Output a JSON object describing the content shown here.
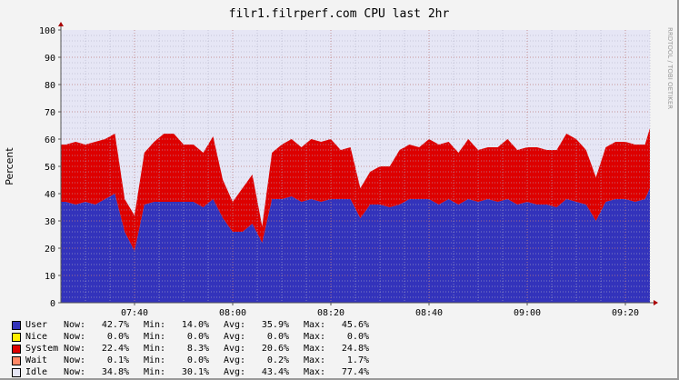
{
  "chart_data": {
    "type": "area",
    "stacked": true,
    "title": "filr1.filrperf.com CPU last 2hr",
    "ylabel": "Percent",
    "xlabel": "",
    "ylim": [
      0,
      100
    ],
    "yticks": [
      "0",
      "10",
      "20",
      "30",
      "40",
      "50",
      "60",
      "70",
      "80",
      "90",
      "100"
    ],
    "xticks": [
      "07:40",
      "08:00",
      "08:20",
      "08:40",
      "09:00",
      "09:20"
    ],
    "xlim": [
      "07:25",
      "09:25"
    ],
    "grid": true,
    "watermark": "RRDTOOL / TOBI OETIKER",
    "x": [
      "07:26",
      "07:28",
      "07:30",
      "07:32",
      "07:34",
      "07:36",
      "07:38",
      "07:40",
      "07:42",
      "07:44",
      "07:46",
      "07:48",
      "07:50",
      "07:52",
      "07:54",
      "07:56",
      "07:58",
      "08:00",
      "08:02",
      "08:04",
      "08:06",
      "08:08",
      "08:10",
      "08:12",
      "08:14",
      "08:16",
      "08:18",
      "08:20",
      "08:22",
      "08:24",
      "08:26",
      "08:28",
      "08:30",
      "08:32",
      "08:34",
      "08:36",
      "08:38",
      "08:40",
      "08:42",
      "08:44",
      "08:46",
      "08:48",
      "08:50",
      "08:52",
      "08:54",
      "08:56",
      "08:58",
      "09:00",
      "09:02",
      "09:04",
      "09:06",
      "09:08",
      "09:10",
      "09:12",
      "09:14",
      "09:16",
      "09:18",
      "09:20",
      "09:22",
      "09:24",
      "09:25"
    ],
    "series": [
      {
        "name": "User",
        "color": "#3333bb",
        "values": [
          37,
          36,
          37,
          36,
          38,
          40,
          26,
          19,
          36,
          37,
          37,
          37,
          37,
          37,
          35,
          38,
          31,
          26,
          26,
          29,
          22,
          38,
          38,
          39,
          37,
          38,
          37,
          38,
          38,
          38,
          31,
          36,
          36,
          35,
          36,
          38,
          38,
          38,
          36,
          38,
          36,
          38,
          37,
          38,
          37,
          38,
          36,
          37,
          36,
          36,
          35,
          38,
          37,
          36,
          30,
          37,
          38,
          38,
          37,
          38,
          42
        ]
      },
      {
        "name": "System",
        "color": "#dd0000",
        "values": [
          21,
          23,
          21,
          23,
          22,
          22,
          12,
          13,
          19,
          22,
          25,
          25,
          21,
          21,
          20,
          23,
          14,
          11,
          16,
          18,
          6,
          17,
          20,
          21,
          20,
          22,
          22,
          22,
          18,
          19,
          11,
          12,
          14,
          15,
          20,
          20,
          19,
          22,
          22,
          21,
          19,
          22,
          19,
          19,
          20,
          22,
          20,
          20,
          21,
          20,
          21,
          24,
          23,
          20,
          16,
          20,
          21,
          21,
          21,
          20,
          22
        ]
      }
    ],
    "legend": [
      {
        "name": "User",
        "color": "#3333bb",
        "now": "42.7%",
        "min": "14.0%",
        "avg": "35.9%",
        "max": "45.6%"
      },
      {
        "name": "Nice",
        "color": "#ffee00",
        "now": "0.0%",
        "min": "0.0%",
        "avg": "0.0%",
        "max": "0.0%"
      },
      {
        "name": "System",
        "color": "#dd0000",
        "now": "22.4%",
        "min": "8.3%",
        "avg": "20.6%",
        "max": "24.8%"
      },
      {
        "name": "Wait",
        "color": "#ff8866",
        "now": "0.1%",
        "min": "0.0%",
        "avg": "0.2%",
        "max": "1.7%"
      },
      {
        "name": "Idle",
        "color": "#e6e6f5",
        "now": "34.8%",
        "min": "30.1%",
        "avg": "43.4%",
        "max": "77.4%"
      }
    ],
    "legend_labels": {
      "now": "Now:",
      "min": "Min:",
      "avg": "Avg:",
      "max": "Max:"
    }
  }
}
